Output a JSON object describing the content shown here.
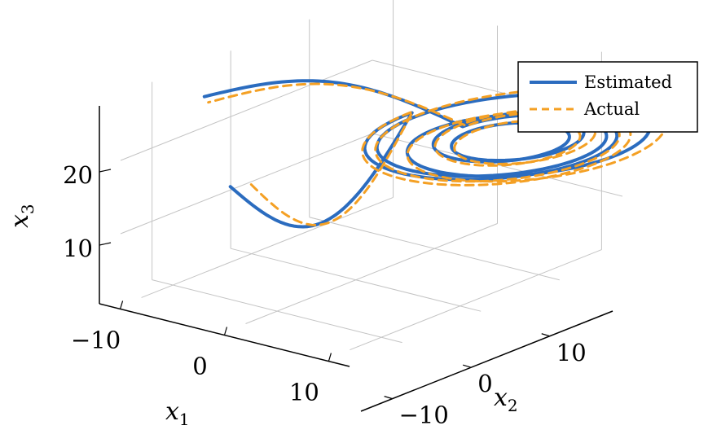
{
  "chart_data": {
    "type": "line",
    "projection": "3d",
    "grid": true,
    "legend_position": "top-right",
    "axes": {
      "x1": {
        "label": "x",
        "subscript": "1",
        "range": [
          -12,
          12
        ],
        "ticks": [
          -10,
          0,
          10
        ],
        "tick_labels": [
          "−10",
          "0",
          "10"
        ]
      },
      "x2": {
        "label": "x",
        "subscript": "2",
        "range": [
          -14,
          18
        ],
        "ticks": [
          -10,
          0,
          10
        ],
        "tick_labels": [
          "−10",
          "0",
          "10"
        ]
      },
      "x3": {
        "label": "x",
        "subscript": "3",
        "range": [
          2,
          29
        ],
        "ticks": [
          10,
          20
        ],
        "tick_labels": [
          "10",
          "20"
        ]
      }
    },
    "series": [
      {
        "name": "Estimated",
        "color": "#2b6cbf",
        "dash": "solid",
        "start_points": [
          [
            -6,
            -8,
            16
          ],
          [
            -10,
            -6,
            26
          ]
        ],
        "spiral": {
          "center": [
            8,
            9,
            20
          ],
          "rotation_deg": 20,
          "radii_min": [
            4,
            1.3
          ],
          "radii_max": [
            11,
            3.4
          ],
          "loops": 5
        }
      },
      {
        "name": "Actual",
        "color": "#f4a024",
        "dash": "dashed",
        "start_points": [
          [
            -4,
            -8,
            17
          ],
          [
            -10,
            -5.5,
            25
          ]
        ],
        "spiral": {
          "center": [
            8.5,
            9.2,
            20
          ],
          "rotation_deg": 22,
          "radii_min": [
            4.3,
            1.5
          ],
          "radii_max": [
            11.8,
            3.8
          ],
          "loops": 5
        }
      }
    ]
  }
}
